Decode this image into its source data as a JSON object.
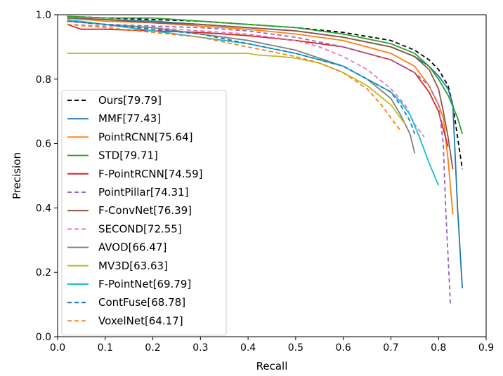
{
  "chart_data": {
    "type": "line",
    "xlabel": "Recall",
    "ylabel": "Precision",
    "xlim": [
      0.0,
      0.9
    ],
    "ylim": [
      0.0,
      1.0
    ],
    "xticks": [
      "0.0",
      "0.1",
      "0.2",
      "0.3",
      "0.4",
      "0.5",
      "0.6",
      "0.7",
      "0.8",
      "0.9"
    ],
    "yticks": [
      "0.0",
      "0.2",
      "0.4",
      "0.6",
      "0.8",
      "1.0"
    ],
    "grid": false,
    "legend_position": "lower-left",
    "series": [
      {
        "name": "Ours[79.79]",
        "color": "#000000",
        "dash": true,
        "x": [
          0.02,
          0.1,
          0.2,
          0.3,
          0.4,
          0.5,
          0.6,
          0.7,
          0.75,
          0.78,
          0.8,
          0.82,
          0.83,
          0.84,
          0.85
        ],
        "y": [
          0.995,
          0.99,
          0.985,
          0.98,
          0.97,
          0.96,
          0.945,
          0.92,
          0.89,
          0.86,
          0.83,
          0.78,
          0.72,
          0.62,
          0.52
        ]
      },
      {
        "name": "MMF[77.43]",
        "color": "#1f77b4",
        "dash": false,
        "x": [
          0.02,
          0.1,
          0.2,
          0.3,
          0.4,
          0.5,
          0.6,
          0.7,
          0.75,
          0.78,
          0.8,
          0.82,
          0.83,
          0.84,
          0.85
        ],
        "y": [
          0.99,
          0.985,
          0.98,
          0.97,
          0.96,
          0.95,
          0.93,
          0.9,
          0.87,
          0.84,
          0.81,
          0.77,
          0.72,
          0.4,
          0.15
        ]
      },
      {
        "name": "PointRCNN[75.64]",
        "color": "#ff7f0e",
        "dash": false,
        "x": [
          0.02,
          0.1,
          0.2,
          0.3,
          0.4,
          0.5,
          0.6,
          0.7,
          0.75,
          0.78,
          0.8,
          0.81,
          0.82,
          0.83
        ],
        "y": [
          0.99,
          0.98,
          0.975,
          0.965,
          0.955,
          0.94,
          0.92,
          0.88,
          0.84,
          0.78,
          0.72,
          0.68,
          0.55,
          0.38
        ]
      },
      {
        "name": "STD[79.71]",
        "color": "#2ca02c",
        "dash": false,
        "x": [
          0.02,
          0.1,
          0.2,
          0.3,
          0.4,
          0.5,
          0.6,
          0.7,
          0.75,
          0.78,
          0.8,
          0.82,
          0.84,
          0.85
        ],
        "y": [
          0.995,
          0.99,
          0.99,
          0.98,
          0.97,
          0.96,
          0.94,
          0.91,
          0.88,
          0.84,
          0.8,
          0.75,
          0.68,
          0.63
        ]
      },
      {
        "name": "F-PointRCNN[74.59]",
        "color": "#d62728",
        "dash": false,
        "x": [
          0.02,
          0.05,
          0.1,
          0.2,
          0.3,
          0.4,
          0.5,
          0.6,
          0.7,
          0.75,
          0.78,
          0.8,
          0.82
        ],
        "y": [
          0.97,
          0.955,
          0.955,
          0.95,
          0.945,
          0.935,
          0.92,
          0.9,
          0.86,
          0.82,
          0.76,
          0.7,
          0.59
        ]
      },
      {
        "name": "PointPillar[74.31]",
        "color": "#9467bd",
        "dash": true,
        "x": [
          0.02,
          0.1,
          0.2,
          0.3,
          0.4,
          0.5,
          0.6,
          0.7,
          0.75,
          0.78,
          0.8,
          0.81,
          0.815,
          0.82,
          0.825
        ],
        "y": [
          0.98,
          0.97,
          0.965,
          0.96,
          0.95,
          0.93,
          0.9,
          0.86,
          0.82,
          0.78,
          0.72,
          0.6,
          0.4,
          0.25,
          0.1
        ]
      },
      {
        "name": "F-ConvNet[76.39]",
        "color": "#8c564b",
        "dash": false,
        "x": [
          0.02,
          0.1,
          0.2,
          0.3,
          0.4,
          0.5,
          0.6,
          0.7,
          0.75,
          0.78,
          0.8,
          0.81,
          0.82,
          0.83
        ],
        "y": [
          0.99,
          0.985,
          0.975,
          0.97,
          0.96,
          0.95,
          0.93,
          0.9,
          0.87,
          0.83,
          0.77,
          0.7,
          0.62,
          0.52
        ]
      },
      {
        "name": "SECOND[72.55]",
        "color": "#e377c2",
        "dash": true,
        "x": [
          0.02,
          0.1,
          0.2,
          0.3,
          0.4,
          0.5,
          0.55,
          0.6,
          0.65,
          0.7,
          0.73,
          0.75,
          0.77
        ],
        "y": [
          0.97,
          0.965,
          0.96,
          0.95,
          0.94,
          0.92,
          0.9,
          0.87,
          0.83,
          0.77,
          0.72,
          0.66,
          0.62
        ]
      },
      {
        "name": "AVOD[66.47]",
        "color": "#7f7f7f",
        "dash": false,
        "x": [
          0.02,
          0.1,
          0.2,
          0.3,
          0.4,
          0.5,
          0.6,
          0.65,
          0.7,
          0.72,
          0.74,
          0.75
        ],
        "y": [
          0.98,
          0.97,
          0.96,
          0.94,
          0.92,
          0.89,
          0.84,
          0.8,
          0.74,
          0.69,
          0.63,
          0.57
        ]
      },
      {
        "name": "MV3D[63.63]",
        "color": "#bcbd22",
        "dash": false,
        "x": [
          0.02,
          0.1,
          0.2,
          0.3,
          0.4,
          0.42,
          0.47,
          0.5,
          0.55,
          0.6,
          0.65,
          0.7,
          0.73
        ],
        "y": [
          0.88,
          0.88,
          0.88,
          0.88,
          0.88,
          0.875,
          0.87,
          0.865,
          0.85,
          0.82,
          0.78,
          0.72,
          0.66
        ]
      },
      {
        "name": "F-PointNet[69.79]",
        "color": "#17becf",
        "dash": false,
        "x": [
          0.02,
          0.1,
          0.2,
          0.3,
          0.4,
          0.5,
          0.6,
          0.65,
          0.7,
          0.72,
          0.74,
          0.76,
          0.78,
          0.8
        ],
        "y": [
          0.985,
          0.97,
          0.95,
          0.93,
          0.91,
          0.88,
          0.84,
          0.8,
          0.76,
          0.73,
          0.69,
          0.62,
          0.54,
          0.47
        ]
      },
      {
        "name": "ContFuse[68.78]",
        "color": "#1f77b4",
        "dash": true,
        "x": [
          0.02,
          0.1,
          0.2,
          0.3,
          0.4,
          0.5,
          0.6,
          0.65,
          0.7,
          0.72,
          0.74,
          0.75
        ],
        "y": [
          0.98,
          0.97,
          0.955,
          0.94,
          0.91,
          0.88,
          0.84,
          0.8,
          0.76,
          0.72,
          0.67,
          0.63
        ]
      },
      {
        "name": "VoxelNet[64.17]",
        "color": "#ff7f0e",
        "dash": true,
        "x": [
          0.02,
          0.1,
          0.2,
          0.3,
          0.4,
          0.5,
          0.55,
          0.6,
          0.65,
          0.68,
          0.7,
          0.72
        ],
        "y": [
          0.97,
          0.96,
          0.945,
          0.93,
          0.9,
          0.87,
          0.85,
          0.82,
          0.77,
          0.72,
          0.68,
          0.64
        ]
      }
    ]
  }
}
